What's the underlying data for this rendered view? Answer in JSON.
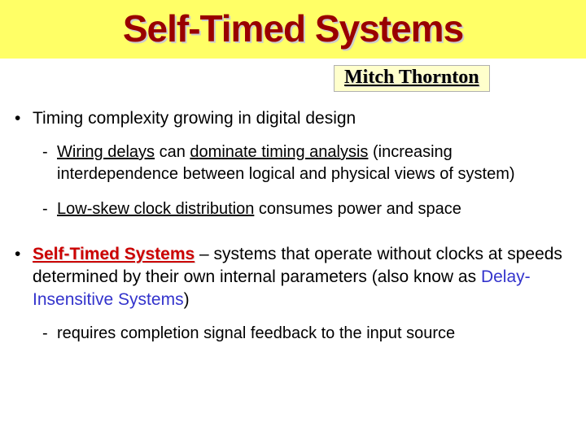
{
  "title": "Self-Timed Systems",
  "author": "Mitch Thornton",
  "colors": {
    "title_band_bg": "#ffff66",
    "title_text": "#990000",
    "author_box_bg": "#ffffcc",
    "author_box_border": "#b0b0b0",
    "red_bold": "#cc0000",
    "blue_term": "#3333cc",
    "body_text": "#000000",
    "background": "#ffffff"
  },
  "typography": {
    "title_fontsize": 46,
    "author_fontsize": 24,
    "body_fontsize": 21,
    "sub_fontsize": 20
  },
  "b1": {
    "text": "Timing complexity growing in digital design",
    "sub1": {
      "lead": "Wiring delays",
      "mid": " can ",
      "ul": "dominate timing analysis",
      "rest": " (increasing interdependence between logical and physical views of system)"
    },
    "sub2": {
      "lead": "Low-skew clock distribution",
      "rest": " consumes power and space"
    }
  },
  "b2": {
    "term": "Self-Timed Systems",
    "dash": " – systems that operate without clocks at speeds determined by their own internal parameters (also know as ",
    "blue": "Delay-Insensitive Systems",
    "close": ")",
    "sub1": {
      "text": "requires completion signal feedback to the input source"
    }
  }
}
